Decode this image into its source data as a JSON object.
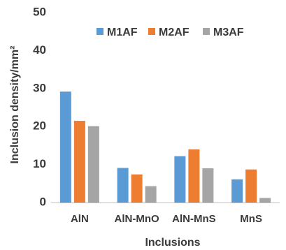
{
  "chart_data": {
    "type": "bar",
    "xlabel": "Inclusions",
    "ylabel": "Inclusion density/mm²",
    "ylim": [
      0,
      50
    ],
    "yticks": [
      0,
      10,
      20,
      30,
      40,
      50
    ],
    "grid": false,
    "legend_position": "top-right",
    "categories": [
      "AlN",
      "AlN-MnO",
      "AlN-MnS",
      "MnS"
    ],
    "series": [
      {
        "name": "M1AF",
        "color": "#5b9bd5",
        "values": [
          29.2,
          9.1,
          12.2,
          6.1
        ]
      },
      {
        "name": "M2AF",
        "color": "#ed7d31",
        "values": [
          21.5,
          7.4,
          14.0,
          8.7
        ]
      },
      {
        "name": "M3AF",
        "color": "#a5a5a5",
        "values": [
          20.1,
          4.3,
          9.0,
          1.2
        ]
      }
    ]
  }
}
